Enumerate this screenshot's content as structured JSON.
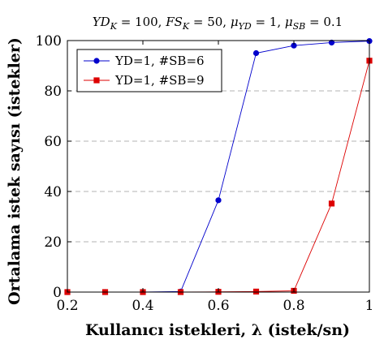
{
  "chart_data": {
    "type": "line",
    "title": "YD_K = 100, FS_K = 50, μ_YD = 1, μ_SB = 0.1",
    "title_parts": [
      {
        "t": "YD",
        "style": "i"
      },
      {
        "t": "K",
        "style": "sub"
      },
      {
        "t": " = 100, ",
        "style": "n"
      },
      {
        "t": "FS",
        "style": "i"
      },
      {
        "t": "K",
        "style": "sub"
      },
      {
        "t": " = 50, ",
        "style": "n"
      },
      {
        "t": "μ",
        "style": "i"
      },
      {
        "t": "YD",
        "style": "sub"
      },
      {
        "t": " = 1, ",
        "style": "n"
      },
      {
        "t": "μ",
        "style": "i"
      },
      {
        "t": "SB",
        "style": "sub"
      },
      {
        "t": " = 0.1",
        "style": "n"
      }
    ],
    "xlabel": "Kullanıcı istekleri, λ (istek/sn)",
    "ylabel": "Ortalama istek sayısı (istekler)",
    "xlim": [
      0.2,
      1.0
    ],
    "ylim": [
      0,
      100
    ],
    "xticks": [
      0.2,
      0.4,
      0.6,
      0.8,
      1.0
    ],
    "xtick_labels": [
      "0.2",
      "0.4",
      "0.6",
      "0.8",
      "1"
    ],
    "yticks": [
      0,
      20,
      40,
      60,
      80,
      100
    ],
    "ytick_labels": [
      "0",
      "20",
      "40",
      "60",
      "80",
      "100"
    ],
    "grid": "horizontal dashed",
    "legend_position": "top-left",
    "series": [
      {
        "name": "YD=1, #SB=6",
        "color": "#0000cc",
        "marker": "circle",
        "x": [
          0.2,
          0.3,
          0.4,
          0.5,
          0.6,
          0.7,
          0.8,
          0.9,
          1.0
        ],
        "y": [
          0,
          0,
          0,
          0.2,
          36.5,
          95,
          98,
          99.2,
          99.8
        ]
      },
      {
        "name": "YD=1, #SB=9",
        "color": "#dd0000",
        "marker": "square",
        "x": [
          0.2,
          0.3,
          0.4,
          0.5,
          0.6,
          0.7,
          0.8,
          0.9,
          1.0
        ],
        "y": [
          0,
          0,
          0,
          0,
          0.1,
          0.2,
          0.5,
          35.2,
          92
        ]
      }
    ]
  }
}
